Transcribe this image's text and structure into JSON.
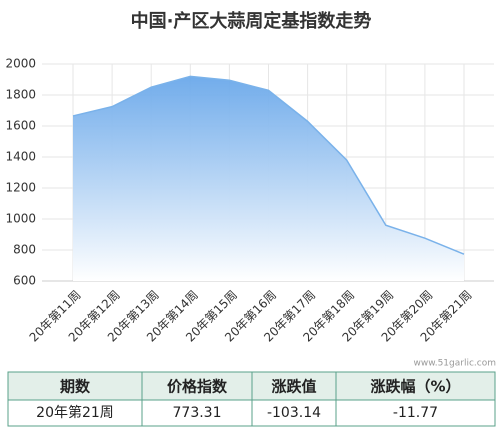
{
  "chart_data": {
    "type": "area",
    "title": "中国·产区大蒜周定基指数走势",
    "categories": [
      "20年第11周",
      "20年第12周",
      "20年第13周",
      "20年第14周",
      "20年第15周",
      "20年第16周",
      "20年第17周",
      "20年第18周",
      "20年第19周",
      "20年第20周",
      "20年第21周"
    ],
    "values": [
      1665,
      1725,
      1850,
      1920,
      1895,
      1830,
      1630,
      1380,
      960,
      876,
      773.31
    ],
    "color": "#7ab2ea",
    "ylim": [
      600,
      2000
    ],
    "yticks": [
      600,
      800,
      1000,
      1200,
      1400,
      1600,
      1800,
      2000
    ],
    "grid": true
  },
  "watermark": "www.51garlic.com",
  "table": {
    "header": [
      "期数",
      "价格指数",
      "涨跌值",
      "涨跌幅（%）"
    ],
    "rows": [
      [
        "20年第21周",
        "773.31",
        "-103.14",
        "-11.77"
      ]
    ]
  }
}
